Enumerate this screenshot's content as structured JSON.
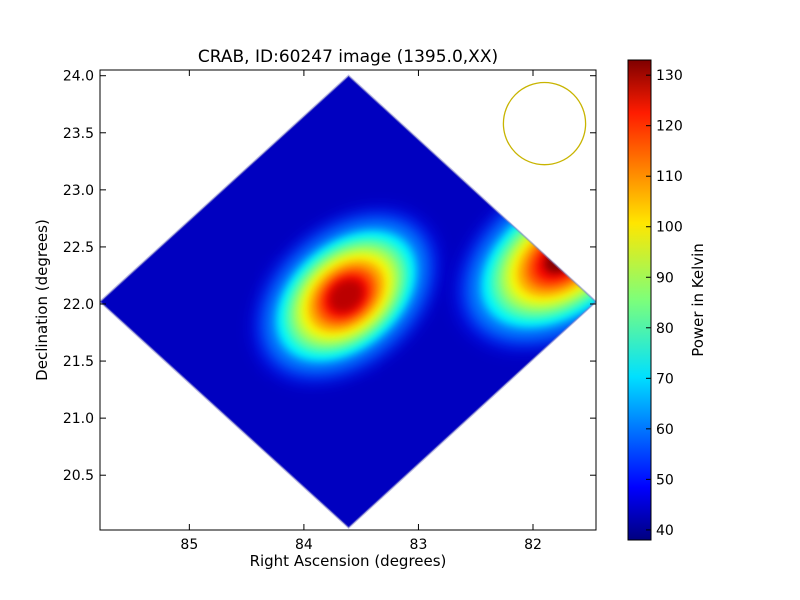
{
  "chart_data": {
    "type": "heatmap",
    "title": "CRAB, ID:60247 image (1395.0,XX)",
    "xlabel": "Right Ascension (degrees)",
    "ylabel": "Declination (degrees)",
    "xlim": [
      85.78,
      81.45
    ],
    "ylim": [
      20.02,
      24.05
    ],
    "xticks": [
      85,
      84,
      83,
      82
    ],
    "xtick_labels": [
      "85",
      "84",
      "83",
      "82"
    ],
    "yticks": [
      20.5,
      21.0,
      21.5,
      22.0,
      22.5,
      23.0,
      23.5,
      24.0
    ],
    "ytick_labels": [
      "20.5",
      "21.0",
      "21.5",
      "22.0",
      "22.5",
      "23.0",
      "23.5",
      "24.0"
    ],
    "colorbar": {
      "label": "Power in Kelvin",
      "vmin": 38,
      "vmax": 133,
      "ticks": [
        40,
        50,
        60,
        70,
        80,
        90,
        100,
        110,
        120,
        130
      ],
      "tick_labels": [
        "40",
        "50",
        "60",
        "70",
        "80",
        "90",
        "100",
        "110",
        "120",
        "130"
      ],
      "colormap": "jet"
    },
    "coverage_diamond_vertices_deg": [
      [
        83.61,
        24.0
      ],
      [
        81.45,
        22.02
      ],
      [
        83.61,
        20.04
      ],
      [
        85.78,
        22.02
      ]
    ],
    "sources": [
      {
        "ra": 83.63,
        "dec": 22.07,
        "peak": 128
      },
      {
        "ra": 81.75,
        "dec": 22.4,
        "peak": 133
      }
    ],
    "background_level": 44,
    "beam_circle": {
      "ra": 81.9,
      "dec": 23.58,
      "radius_deg": 0.36,
      "color": "#c8b400"
    }
  }
}
